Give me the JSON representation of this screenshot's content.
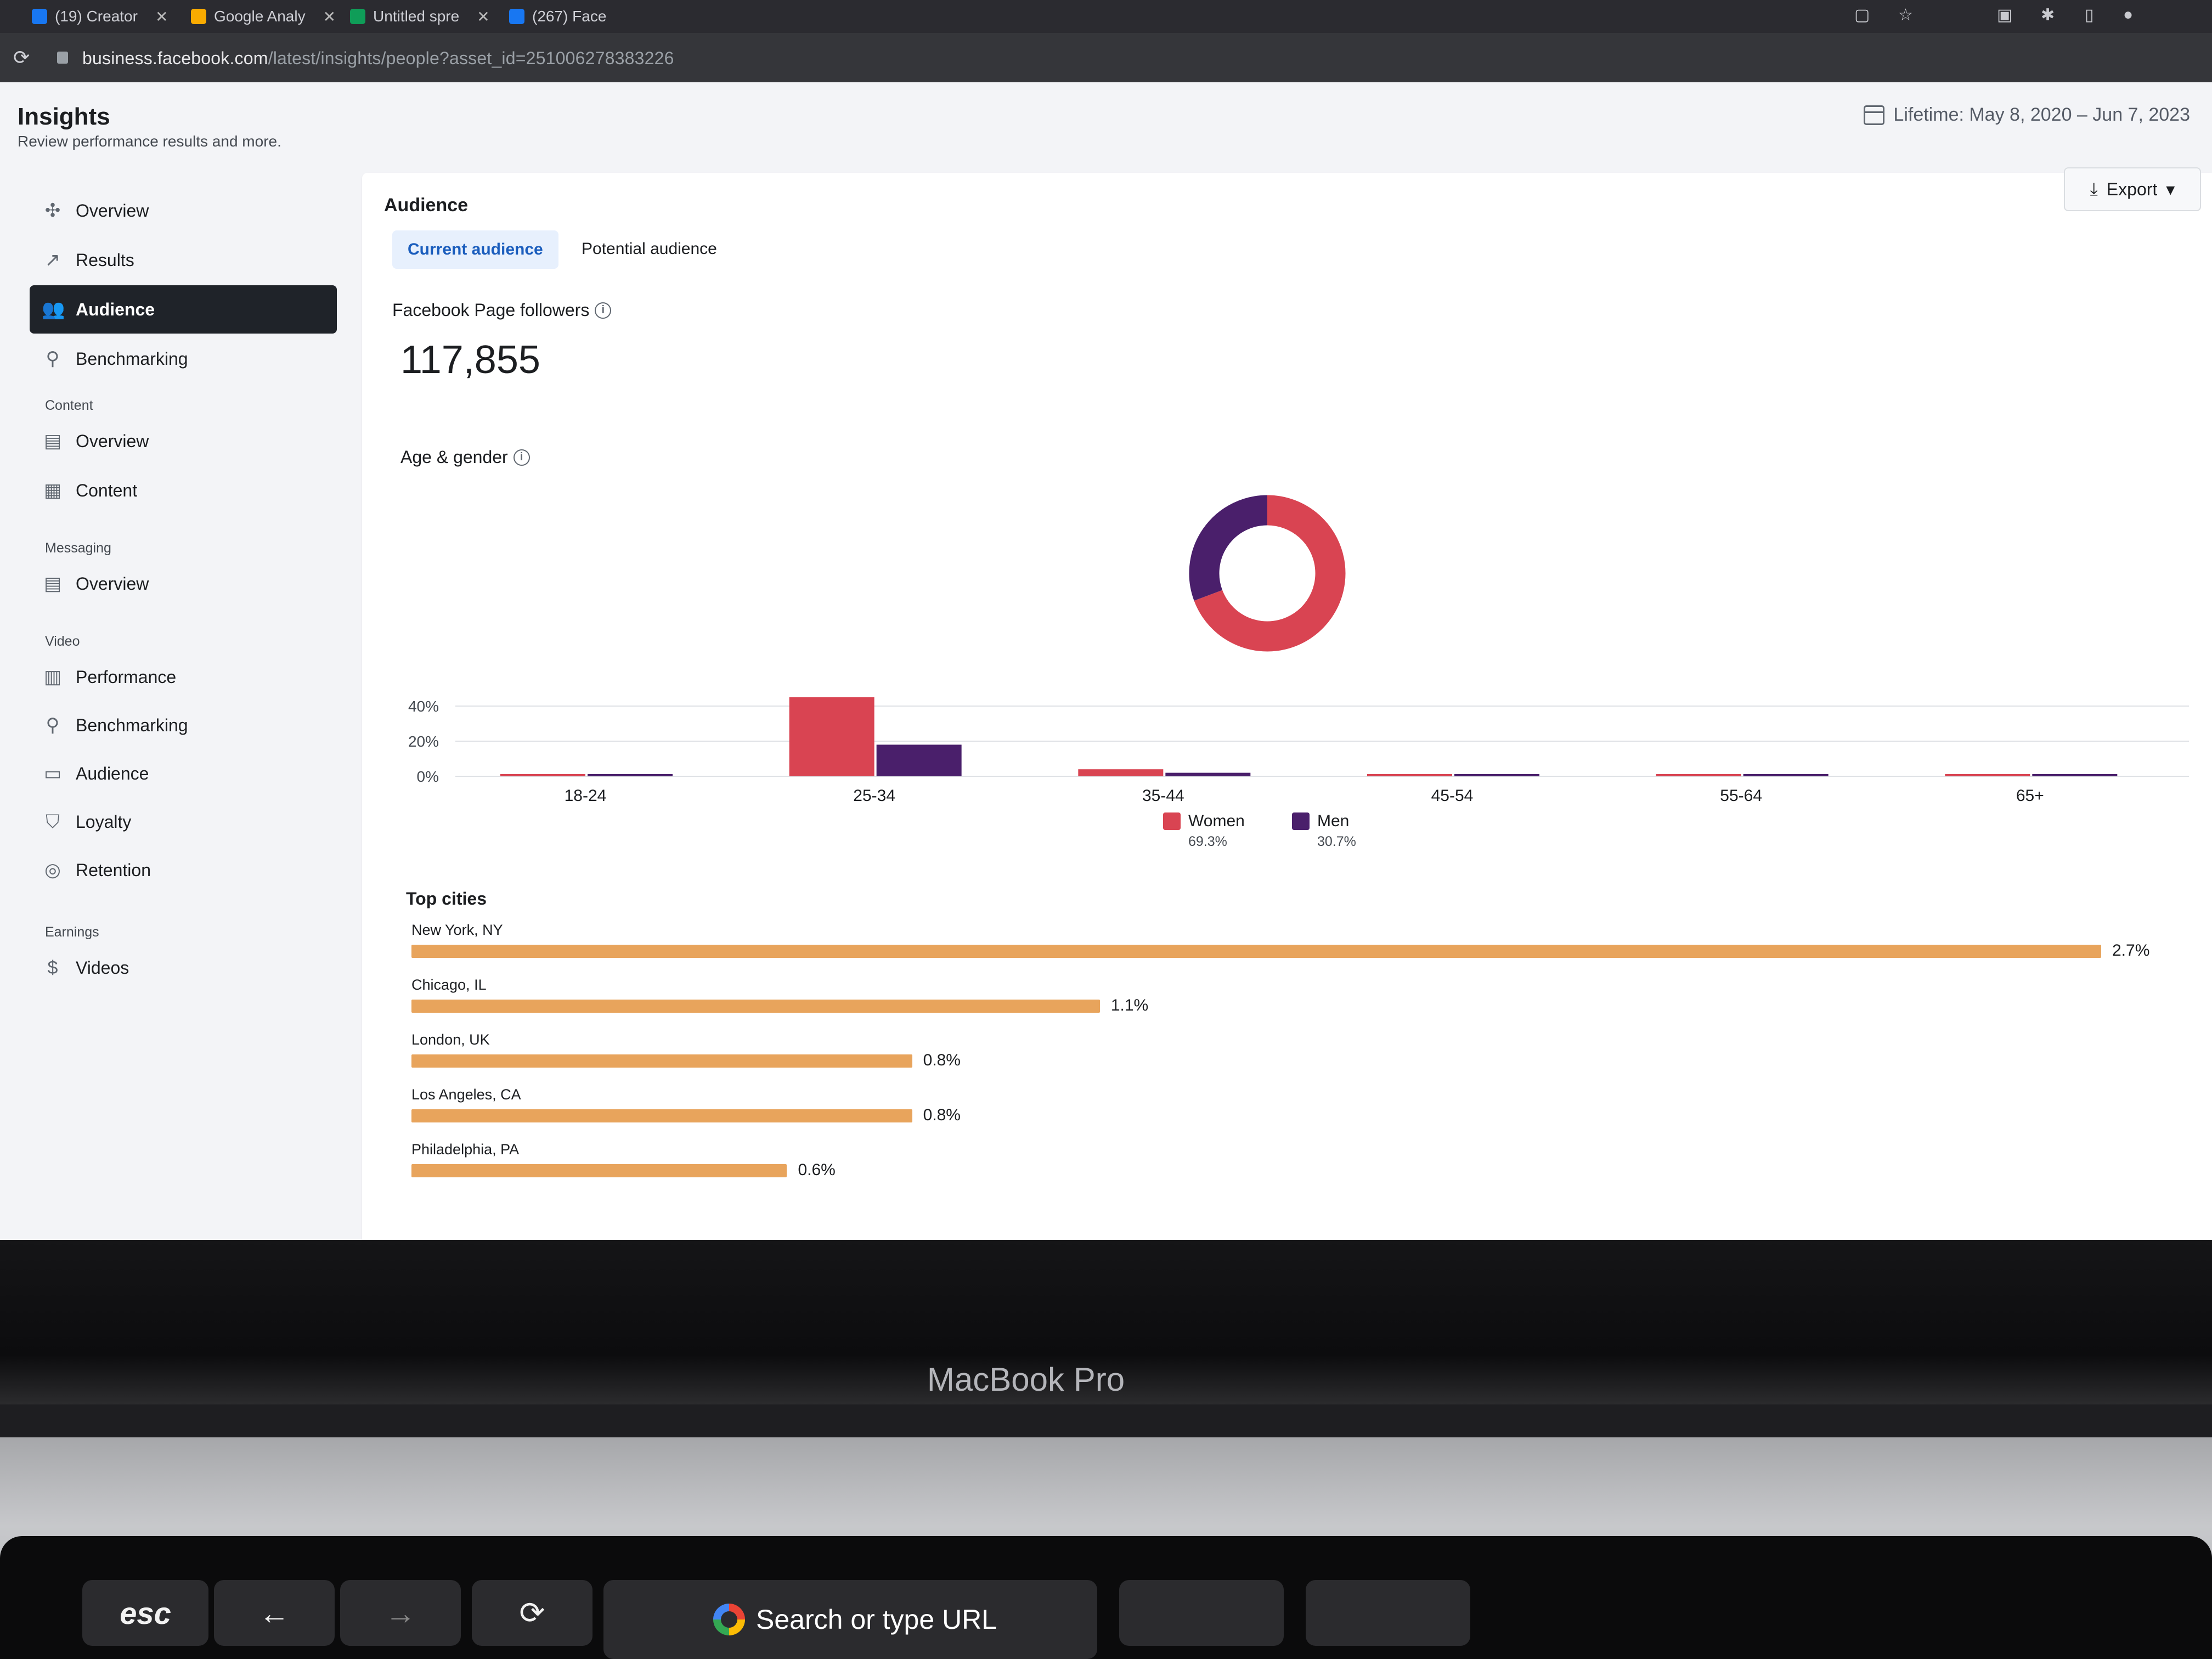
{
  "browser": {
    "tabs": [
      {
        "label": "(19) Creator",
        "color": "#1877f2"
      },
      {
        "label": "Google Analy",
        "color": "#f9ab00"
      },
      {
        "label": "Untitled spre",
        "color": "#0f9d58"
      },
      {
        "label": "(267) Face",
        "color": "#1877f2"
      }
    ],
    "url_host": "business.facebook.com",
    "url_path": "/latest/insights/people?asset_id=251006278383226"
  },
  "header": {
    "title": "Insights",
    "subtitle": "Review performance results and more.",
    "date_range": "Lifetime: May 8, 2020 – Jun 7, 2023",
    "export_label": "Export"
  },
  "sidebar": {
    "items": [
      {
        "label": "Overview",
        "icon": "overview-icon",
        "active": false
      },
      {
        "label": "Results",
        "icon": "results-icon",
        "active": false
      },
      {
        "label": "Audience",
        "icon": "audience-icon",
        "active": true
      },
      {
        "label": "Benchmarking",
        "icon": "benchmarking-icon",
        "active": false
      }
    ],
    "sections": [
      {
        "title": "Content",
        "items": [
          {
            "label": "Overview",
            "icon": "overview-icon"
          },
          {
            "label": "Content",
            "icon": "table-icon"
          }
        ]
      },
      {
        "title": "Messaging",
        "items": [
          {
            "label": "Overview",
            "icon": "overview-icon"
          }
        ]
      },
      {
        "title": "Video",
        "items": [
          {
            "label": "Performance",
            "icon": "document-icon"
          },
          {
            "label": "Benchmarking",
            "icon": "benchmarking-icon"
          },
          {
            "label": "Audience",
            "icon": "video-icon"
          },
          {
            "label": "Loyalty",
            "icon": "shield-icon"
          },
          {
            "label": "Retention",
            "icon": "person-icon"
          }
        ]
      },
      {
        "title": "Earnings",
        "items": [
          {
            "label": "Videos",
            "icon": "dollar-icon"
          }
        ]
      }
    ]
  },
  "audience": {
    "title": "Audience",
    "tabs": {
      "current": "Current audience",
      "potential": "Potential audience"
    },
    "followers_label": "Facebook Page followers",
    "followers_value": "117,855",
    "age_gender_label": "Age & gender",
    "top_cities_title": "Top cities"
  },
  "colors": {
    "women": "#d94452",
    "men": "#4a1f6b",
    "city_bar": "#e8a45c",
    "accent": "#1a5dbd"
  },
  "chart_data": [
    {
      "type": "bar",
      "categories": [
        "18-24",
        "25-34",
        "35-44",
        "45-54",
        "55-64",
        "65+"
      ],
      "series": [
        {
          "name": "Women",
          "values": [
            1,
            45,
            4,
            1,
            0.5,
            0.3
          ]
        },
        {
          "name": "Men",
          "values": [
            0.5,
            18,
            2,
            0.5,
            0.3,
            0.2
          ]
        }
      ],
      "y_ticks": [
        "40%",
        "20%",
        "0%"
      ],
      "ylim": [
        0,
        50
      ],
      "legend": [
        {
          "name": "Women",
          "pct": "69.3%"
        },
        {
          "name": "Men",
          "pct": "30.7%"
        }
      ]
    },
    {
      "type": "pie",
      "categories": [
        "Women",
        "Men"
      ],
      "values": [
        69.3,
        30.7
      ]
    },
    {
      "type": "bar",
      "orientation": "horizontal",
      "categories": [
        "New York, NY",
        "Chicago, IL",
        "London, UK",
        "Los Angeles, CA",
        "Philadelphia, PA"
      ],
      "values": [
        2.7,
        1.1,
        0.8,
        0.8,
        0.6
      ],
      "labels": [
        "2.7%",
        "1.1%",
        "0.8%",
        "0.8%",
        "0.6%"
      ]
    }
  ],
  "laptop": {
    "brand": "MacBook Pro",
    "touchbar": {
      "esc": "esc",
      "search": "Search or type URL"
    }
  }
}
